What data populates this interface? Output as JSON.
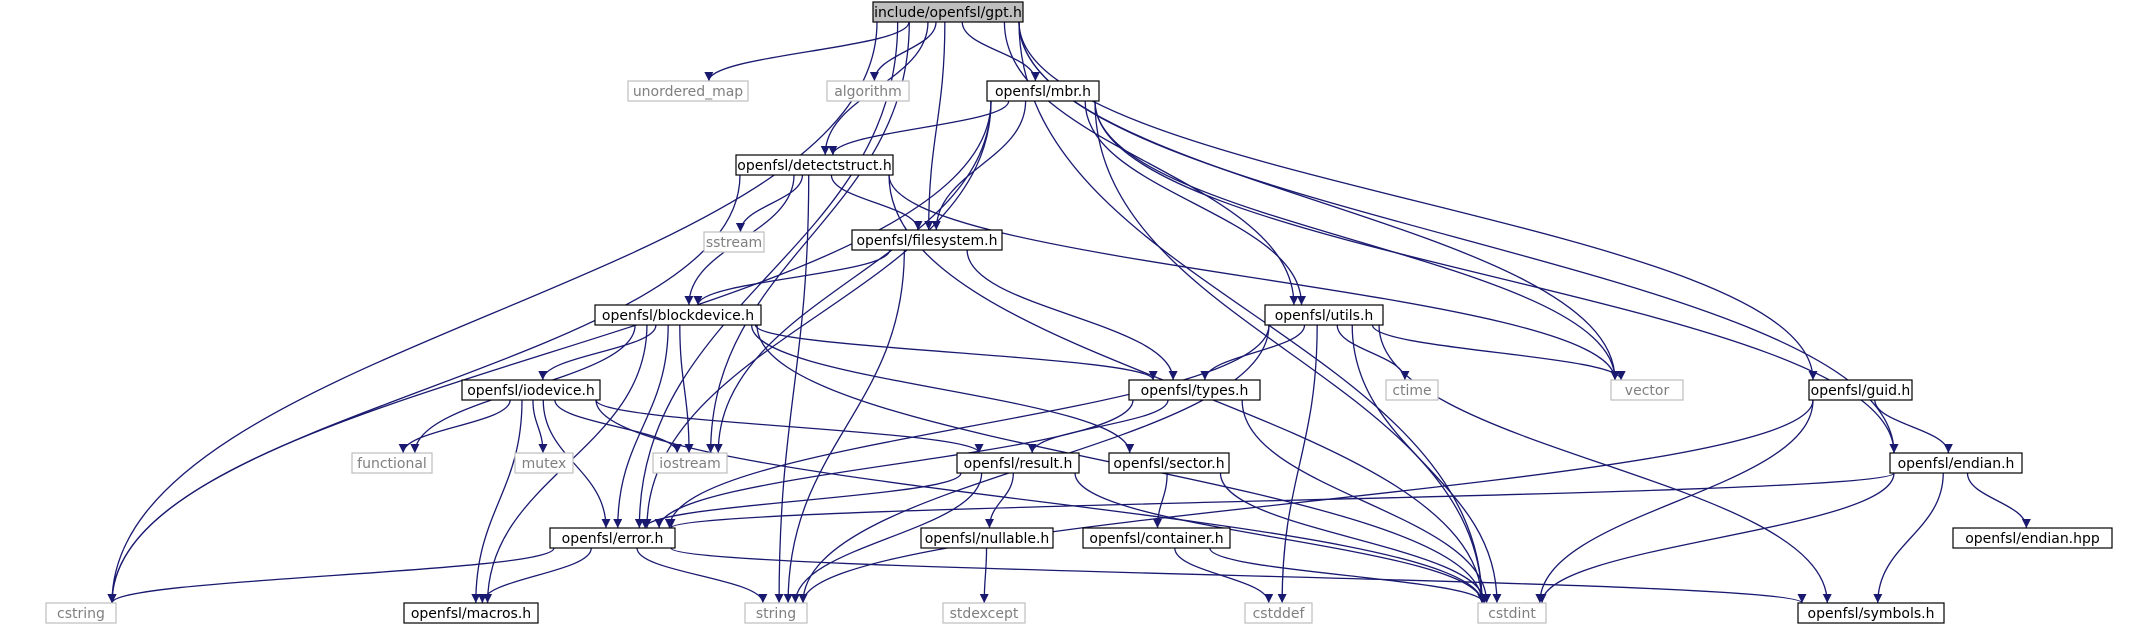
{
  "colors": {
    "edge": "#191970",
    "root_fill": "#bfbfbf",
    "node_border": "#000000",
    "external_border": "#bfbfbf",
    "external_text": "#7f7f7f",
    "text": "#000000"
  },
  "nodes": [
    {
      "id": "gpt",
      "label": "include/openfsl/gpt.h",
      "kind": "root"
    },
    {
      "id": "unordered_map",
      "label": "unordered_map",
      "kind": "external"
    },
    {
      "id": "algorithm",
      "label": "algorithm",
      "kind": "external"
    },
    {
      "id": "mbr",
      "label": "openfsl/mbr.h",
      "kind": "internal"
    },
    {
      "id": "detectstruct",
      "label": "openfsl/detectstruct.h",
      "kind": "internal"
    },
    {
      "id": "sstream",
      "label": "sstream",
      "kind": "external"
    },
    {
      "id": "filesystem",
      "label": "openfsl/filesystem.h",
      "kind": "internal"
    },
    {
      "id": "blockdevice",
      "label": "openfsl/blockdevice.h",
      "kind": "internal"
    },
    {
      "id": "utils",
      "label": "openfsl/utils.h",
      "kind": "internal"
    },
    {
      "id": "iodevice",
      "label": "openfsl/iodevice.h",
      "kind": "internal"
    },
    {
      "id": "types",
      "label": "openfsl/types.h",
      "kind": "internal"
    },
    {
      "id": "ctime",
      "label": "ctime",
      "kind": "external"
    },
    {
      "id": "vector",
      "label": "vector",
      "kind": "external"
    },
    {
      "id": "guid",
      "label": "openfsl/guid.h",
      "kind": "internal"
    },
    {
      "id": "functional",
      "label": "functional",
      "kind": "external"
    },
    {
      "id": "mutex",
      "label": "mutex",
      "kind": "external"
    },
    {
      "id": "iostream",
      "label": "iostream",
      "kind": "external"
    },
    {
      "id": "result",
      "label": "openfsl/result.h",
      "kind": "internal"
    },
    {
      "id": "sector",
      "label": "openfsl/sector.h",
      "kind": "internal"
    },
    {
      "id": "endian",
      "label": "openfsl/endian.h",
      "kind": "internal"
    },
    {
      "id": "error",
      "label": "openfsl/error.h",
      "kind": "internal"
    },
    {
      "id": "nullable",
      "label": "openfsl/nullable.h",
      "kind": "internal"
    },
    {
      "id": "container",
      "label": "openfsl/container.h",
      "kind": "internal"
    },
    {
      "id": "endianhpp",
      "label": "openfsl/endian.hpp",
      "kind": "internal"
    },
    {
      "id": "cstring",
      "label": "cstring",
      "kind": "external"
    },
    {
      "id": "macros",
      "label": "openfsl/macros.h",
      "kind": "internal"
    },
    {
      "id": "string",
      "label": "string",
      "kind": "external"
    },
    {
      "id": "stdexcept",
      "label": "stdexcept",
      "kind": "external"
    },
    {
      "id": "cstddef",
      "label": "cstddef",
      "kind": "external"
    },
    {
      "id": "cstdint",
      "label": "cstdint",
      "kind": "external"
    },
    {
      "id": "symbols",
      "label": "openfsl/symbols.h",
      "kind": "internal"
    }
  ],
  "edges": [
    [
      "gpt",
      "unordered_map"
    ],
    [
      "gpt",
      "algorithm"
    ],
    [
      "gpt",
      "mbr"
    ],
    [
      "gpt",
      "detectstruct"
    ],
    [
      "gpt",
      "filesystem"
    ],
    [
      "gpt",
      "utils"
    ],
    [
      "gpt",
      "vector"
    ],
    [
      "gpt",
      "guid"
    ],
    [
      "gpt",
      "endian"
    ],
    [
      "gpt",
      "iostream"
    ],
    [
      "gpt",
      "error"
    ],
    [
      "gpt",
      "cstring"
    ],
    [
      "gpt",
      "cstdint"
    ],
    [
      "mbr",
      "detectstruct"
    ],
    [
      "mbr",
      "filesystem"
    ],
    [
      "mbr",
      "utils"
    ],
    [
      "mbr",
      "vector"
    ],
    [
      "mbr",
      "endian"
    ],
    [
      "mbr",
      "iostream"
    ],
    [
      "mbr",
      "error"
    ],
    [
      "mbr",
      "cstring"
    ],
    [
      "mbr",
      "cstdint"
    ],
    [
      "detectstruct",
      "sstream"
    ],
    [
      "detectstruct",
      "filesystem"
    ],
    [
      "detectstruct",
      "blockdevice"
    ],
    [
      "detectstruct",
      "vector"
    ],
    [
      "detectstruct",
      "string"
    ],
    [
      "detectstruct",
      "cstring"
    ],
    [
      "detectstruct",
      "cstdint"
    ],
    [
      "filesystem",
      "blockdevice"
    ],
    [
      "filesystem",
      "types"
    ],
    [
      "filesystem",
      "string"
    ],
    [
      "blockdevice",
      "iodevice"
    ],
    [
      "blockdevice",
      "types"
    ],
    [
      "blockdevice",
      "functional"
    ],
    [
      "blockdevice",
      "iostream"
    ],
    [
      "blockdevice",
      "sector"
    ],
    [
      "blockdevice",
      "error"
    ],
    [
      "blockdevice",
      "macros"
    ],
    [
      "blockdevice",
      "cstdint"
    ],
    [
      "utils",
      "types"
    ],
    [
      "utils",
      "ctime"
    ],
    [
      "utils",
      "vector"
    ],
    [
      "utils",
      "error"
    ],
    [
      "utils",
      "string"
    ],
    [
      "utils",
      "cstddef"
    ],
    [
      "utils",
      "cstdint"
    ],
    [
      "utils",
      "symbols"
    ],
    [
      "iodevice",
      "functional"
    ],
    [
      "iodevice",
      "mutex"
    ],
    [
      "iodevice",
      "iostream"
    ],
    [
      "iodevice",
      "error"
    ],
    [
      "iodevice",
      "macros"
    ],
    [
      "iodevice",
      "result"
    ],
    [
      "iodevice",
      "cstdint"
    ],
    [
      "types",
      "result"
    ],
    [
      "types",
      "error"
    ],
    [
      "types",
      "cstdint"
    ],
    [
      "guid",
      "endian"
    ],
    [
      "guid",
      "string"
    ],
    [
      "guid",
      "cstdint"
    ],
    [
      "result",
      "nullable"
    ],
    [
      "result",
      "error"
    ],
    [
      "result",
      "string"
    ],
    [
      "result",
      "cstdint"
    ],
    [
      "sector",
      "container"
    ],
    [
      "sector",
      "cstdint"
    ],
    [
      "endian",
      "endianhpp"
    ],
    [
      "endian",
      "error"
    ],
    [
      "endian",
      "cstdint"
    ],
    [
      "endian",
      "symbols"
    ],
    [
      "error",
      "cstring"
    ],
    [
      "error",
      "macros"
    ],
    [
      "error",
      "string"
    ],
    [
      "error",
      "symbols"
    ],
    [
      "nullable",
      "stdexcept"
    ],
    [
      "container",
      "cstddef"
    ],
    [
      "container",
      "cstdint"
    ]
  ]
}
